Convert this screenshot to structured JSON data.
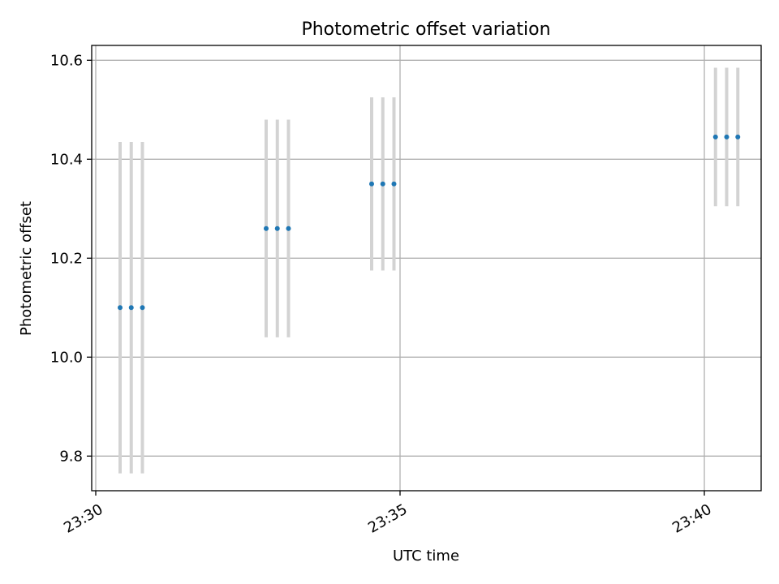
{
  "chart_data": {
    "type": "scatter",
    "title": "Photometric offset variation",
    "xlabel": "UTC time",
    "ylabel": "Photometric offset",
    "x_ticks": [
      "23:30",
      "23:35",
      "23:40"
    ],
    "y_ticks": [
      "9.8",
      "10.0",
      "10.2",
      "10.4",
      "10.6"
    ],
    "xlim": [
      "23:29:56",
      "23:40:56"
    ],
    "ylim": [
      9.73,
      10.63
    ],
    "grid": true,
    "colors": {
      "points": "#1f77b4",
      "errorbars": "#d3d3d3",
      "grid": "#b0b0b0"
    },
    "points": [
      {
        "t": "23:30:24",
        "y": 10.1,
        "yerr": 0.335
      },
      {
        "t": "23:30:35",
        "y": 10.1,
        "yerr": 0.335
      },
      {
        "t": "23:30:46",
        "y": 10.1,
        "yerr": 0.335
      },
      {
        "t": "23:32:48",
        "y": 10.26,
        "yerr": 0.22
      },
      {
        "t": "23:32:59",
        "y": 10.26,
        "yerr": 0.22
      },
      {
        "t": "23:33:10",
        "y": 10.26,
        "yerr": 0.22
      },
      {
        "t": "23:34:32",
        "y": 10.35,
        "yerr": 0.175
      },
      {
        "t": "23:34:43",
        "y": 10.35,
        "yerr": 0.175
      },
      {
        "t": "23:34:54",
        "y": 10.35,
        "yerr": 0.175
      },
      {
        "t": "23:40:11",
        "y": 10.445,
        "yerr": 0.14
      },
      {
        "t": "23:40:22",
        "y": 10.445,
        "yerr": 0.14
      },
      {
        "t": "23:40:33",
        "y": 10.445,
        "yerr": 0.14
      }
    ]
  }
}
